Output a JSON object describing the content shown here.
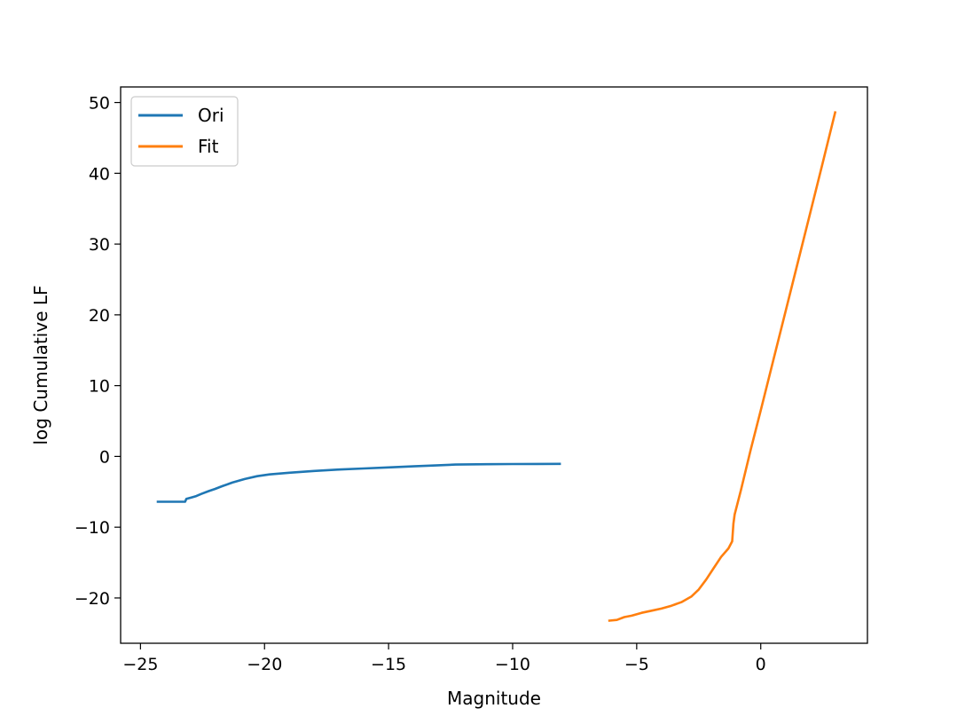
{
  "chart_data": {
    "type": "line",
    "xlabel": "Magnitude",
    "ylabel": "log Cumulative LF",
    "xlim": [
      -25.8,
      4.3
    ],
    "ylim": [
      -26.4,
      52.2
    ],
    "x_ticks": [
      -25,
      -20,
      -15,
      -10,
      -5,
      0
    ],
    "y_ticks": [
      -20,
      -10,
      0,
      10,
      20,
      30,
      40,
      50
    ],
    "x_tick_labels": [
      "−25",
      "−20",
      "−15",
      "−10",
      "−5",
      "0"
    ],
    "y_tick_labels": [
      "−20",
      "−10",
      "0",
      "10",
      "20",
      "30",
      "40",
      "50"
    ],
    "grid": false,
    "legend_position": "top-left",
    "series": [
      {
        "name": "Ori",
        "color": "#1f77b4",
        "points": [
          [
            -24.3,
            -6.4
          ],
          [
            -23.6,
            -6.4
          ],
          [
            -23.2,
            -6.4
          ],
          [
            -23.15,
            -6.0
          ],
          [
            -22.95,
            -5.8
          ],
          [
            -22.75,
            -5.6
          ],
          [
            -22.55,
            -5.3
          ],
          [
            -22.25,
            -4.9
          ],
          [
            -22.0,
            -4.6
          ],
          [
            -21.7,
            -4.2
          ],
          [
            -21.3,
            -3.7
          ],
          [
            -20.8,
            -3.2
          ],
          [
            -20.3,
            -2.8
          ],
          [
            -19.8,
            -2.55
          ],
          [
            -19.0,
            -2.3
          ],
          [
            -18.0,
            -2.05
          ],
          [
            -17.0,
            -1.85
          ],
          [
            -16.0,
            -1.7
          ],
          [
            -15.0,
            -1.55
          ],
          [
            -14.0,
            -1.4
          ],
          [
            -13.0,
            -1.25
          ],
          [
            -12.3,
            -1.15
          ],
          [
            -11.0,
            -1.1
          ],
          [
            -10.0,
            -1.08
          ],
          [
            -9.0,
            -1.06
          ],
          [
            -8.1,
            -1.05
          ]
        ]
      },
      {
        "name": "Fit",
        "color": "#ff7f0e",
        "points": [
          [
            -6.1,
            -23.2
          ],
          [
            -5.8,
            -23.1
          ],
          [
            -5.5,
            -22.7
          ],
          [
            -5.2,
            -22.5
          ],
          [
            -4.8,
            -22.1
          ],
          [
            -4.4,
            -21.8
          ],
          [
            -4.0,
            -21.5
          ],
          [
            -3.6,
            -21.1
          ],
          [
            -3.2,
            -20.6
          ],
          [
            -2.8,
            -19.8
          ],
          [
            -2.5,
            -18.8
          ],
          [
            -2.2,
            -17.4
          ],
          [
            -1.9,
            -15.8
          ],
          [
            -1.6,
            -14.2
          ],
          [
            -1.3,
            -13.0
          ],
          [
            -1.15,
            -12.0
          ],
          [
            -1.1,
            -9.5
          ],
          [
            -1.05,
            -8.2
          ],
          [
            -0.8,
            -4.8
          ],
          [
            -0.4,
            1.0
          ],
          [
            0.0,
            6.5
          ],
          [
            0.5,
            13.5
          ],
          [
            1.0,
            20.5
          ],
          [
            1.5,
            27.5
          ],
          [
            2.0,
            34.5
          ],
          [
            2.5,
            41.5
          ],
          [
            3.0,
            48.6
          ]
        ]
      }
    ]
  }
}
